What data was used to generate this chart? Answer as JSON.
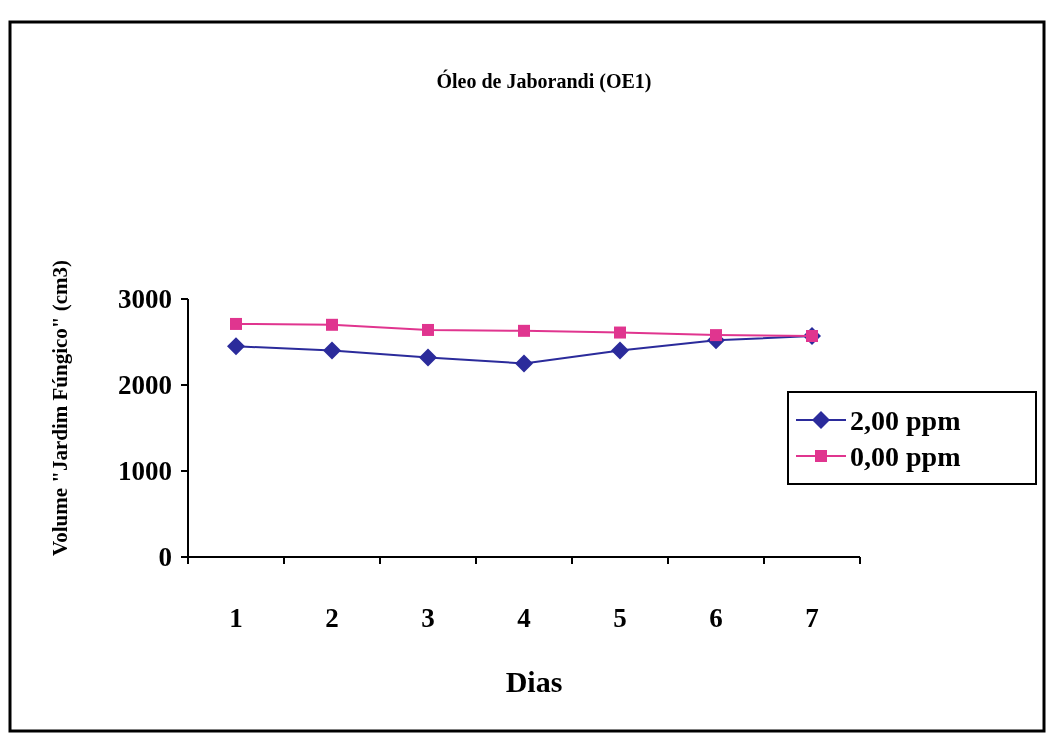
{
  "chart_data": {
    "type": "line",
    "title": "Óleo de Jaborandi (OE1)",
    "xlabel": "Dias",
    "ylabel": "Volume \"Jardim Fúngico\" (cm3)",
    "categories": [
      "1",
      "2",
      "3",
      "4",
      "5",
      "6",
      "7"
    ],
    "series": [
      {
        "name": "2,00 ppm",
        "color": "#2b2b9b",
        "marker": "diamond",
        "values": [
          2450,
          2400,
          2320,
          2250,
          2400,
          2520,
          2570
        ]
      },
      {
        "name": "0,00 ppm",
        "color": "#e0358f",
        "marker": "square",
        "values": [
          2710,
          2700,
          2640,
          2630,
          2610,
          2580,
          2570
        ]
      }
    ],
    "ylim": [
      0,
      3000
    ],
    "yticks": [
      0,
      1000,
      2000,
      3000
    ],
    "grid": false,
    "legend": "right"
  }
}
